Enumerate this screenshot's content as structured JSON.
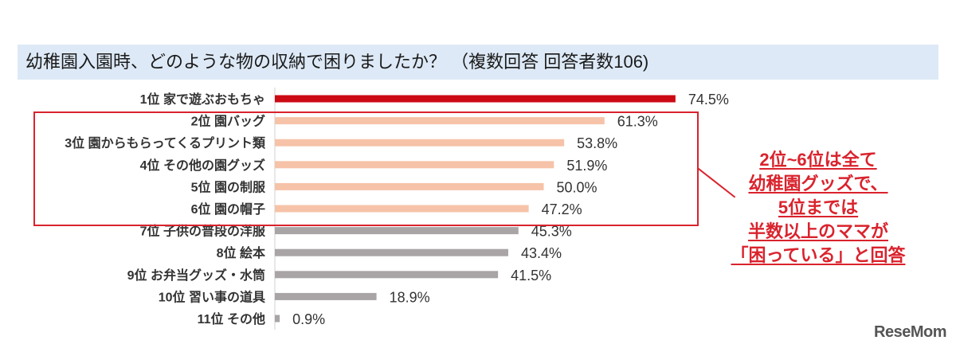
{
  "chart_data": {
    "type": "bar",
    "orientation": "horizontal",
    "title": "幼稚園入園時、どのような物の収納で困りましたか？ （複数回答 回答者数106)",
    "categories": [
      "1位 家で遊ぶおもちゃ",
      "2位 園バッグ",
      "3位 園からもらってくるプリント類",
      "4位 その他の園グッズ",
      "5位 園の制服",
      "6位 園の帽子",
      "7位  子供の普段の洋服",
      "8位   絵本",
      "9位   お弁当グッズ・水筒",
      "10位   習い事の道具",
      "11位   その他"
    ],
    "values": [
      74.5,
      61.3,
      53.8,
      51.9,
      50.0,
      47.2,
      45.3,
      43.4,
      41.5,
      18.9,
      0.9
    ],
    "value_labels": [
      "74.5%",
      "61.3%",
      "53.8%",
      "51.9%",
      "50.0%",
      "47.2%",
      "45.3%",
      "43.4%",
      "41.5%",
      "18.9%",
      "0.9%"
    ],
    "xlim": [
      0,
      100
    ],
    "colors": {
      "top": "#cc0a14",
      "highlight": "#f6c3a8",
      "others": "#a9a4a5"
    },
    "highlight_range": [
      1,
      5
    ],
    "annotation": [
      "2位~6位は全て",
      "幼稚園グッズで、",
      "5位までは",
      "半数以上のママが",
      "「困っている」と回答"
    ]
  },
  "logo": "ReseMom"
}
